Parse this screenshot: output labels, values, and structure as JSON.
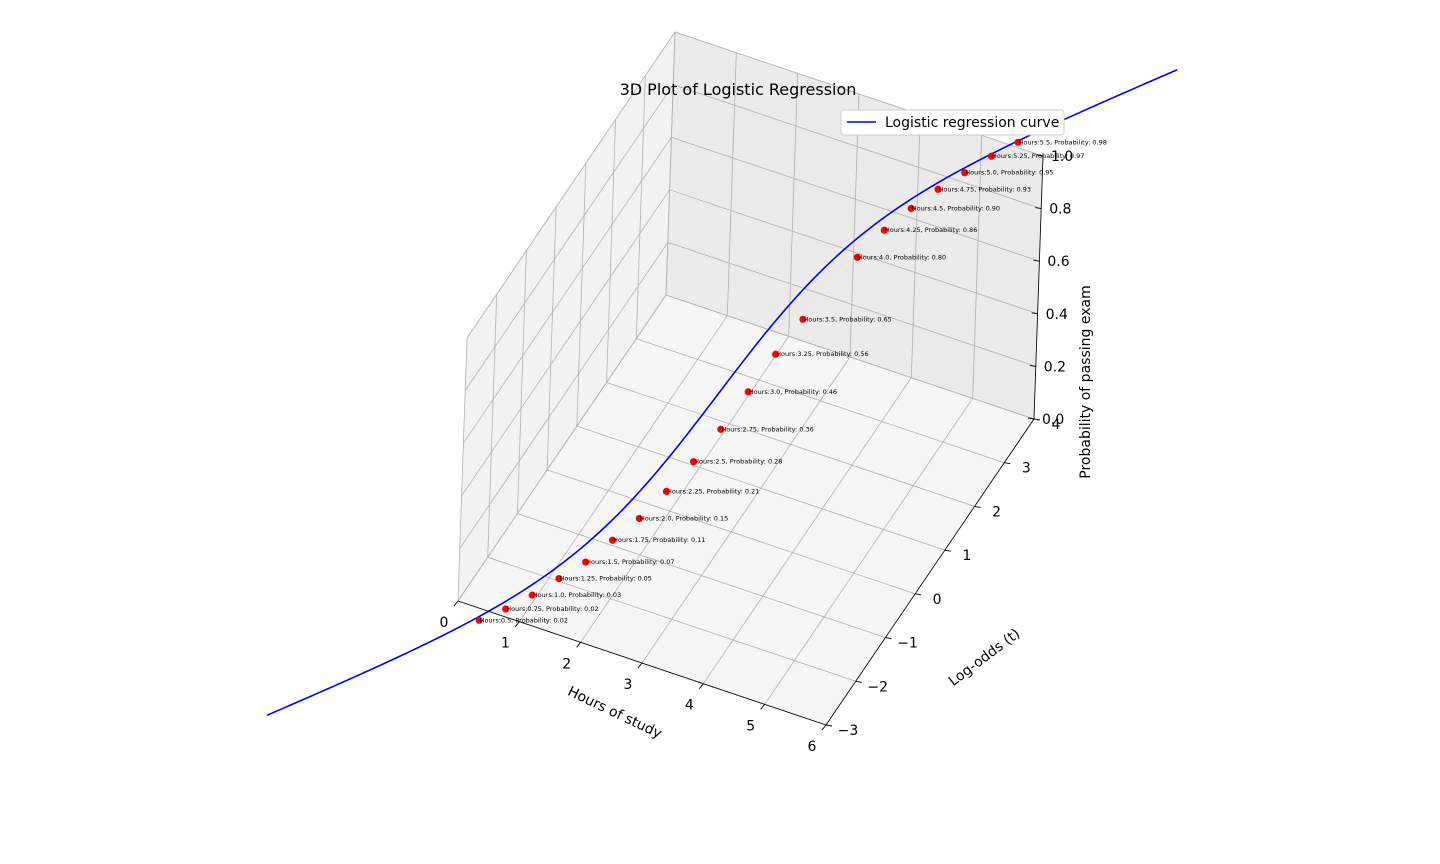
{
  "chart_data": {
    "type": "line",
    "title": "3D Plot of Logistic Regression",
    "xlabel": "Hours of study",
    "ylabel": "Log-odds (t)",
    "zlabel": "Probability of passing exam",
    "x_ticks": [
      "0",
      "1",
      "2",
      "3",
      "4",
      "5",
      "6"
    ],
    "y_ticks": [
      "−3",
      "−2",
      "−1",
      "0",
      "1",
      "2",
      "3",
      "4"
    ],
    "z_ticks": [
      "0.0",
      "0.2",
      "0.4",
      "0.6",
      "0.8",
      "1.0"
    ],
    "xlim": [
      0,
      6
    ],
    "ylim": [
      -3,
      4
    ],
    "zlim": [
      0,
      1
    ],
    "grid": true,
    "legend_position": "top-right",
    "series": [
      {
        "name": "Logistic regression curve",
        "color": "#0000ff",
        "type": "line"
      },
      {
        "color": "#ff0000",
        "type": "scatter"
      }
    ],
    "points": [
      {
        "hours": 0.5,
        "prob": 0.02,
        "label": "Hours:0.5, Probability: 0.02"
      },
      {
        "hours": 0.75,
        "prob": 0.02,
        "label": "Hours:0.75, Probability: 0.02"
      },
      {
        "hours": 1.0,
        "prob": 0.03,
        "label": "Hours:1.0, Probability: 0.03"
      },
      {
        "hours": 1.25,
        "prob": 0.05,
        "label": "Hours:1.25, Probability: 0.05"
      },
      {
        "hours": 1.5,
        "prob": 0.07,
        "label": "Hours:1.5, Probability: 0.07"
      },
      {
        "hours": 1.75,
        "prob": 0.11,
        "label": "Hours:1.75, Probability: 0.11"
      },
      {
        "hours": 2.0,
        "prob": 0.15,
        "label": "Hours:2.0, Probability: 0.15"
      },
      {
        "hours": 2.25,
        "prob": 0.21,
        "label": "Hours:2.25, Probability: 0.21"
      },
      {
        "hours": 2.5,
        "prob": 0.28,
        "label": "Hours:2.5, Probability: 0.28"
      },
      {
        "hours": 2.75,
        "prob": 0.36,
        "label": "Hours:2.75, Probability: 0.36"
      },
      {
        "hours": 3.0,
        "prob": 0.46,
        "label": "Hours:3.0, Probability: 0.46"
      },
      {
        "hours": 3.25,
        "prob": 0.56,
        "label": "Hours:3.25, Probability: 0.56"
      },
      {
        "hours": 3.5,
        "prob": 0.65,
        "label": "Hours:3.5, Probability: 0.65"
      },
      {
        "hours": 4.0,
        "prob": 0.8,
        "label": "Hours:4.0, Probability: 0.80"
      },
      {
        "hours": 4.25,
        "prob": 0.86,
        "label": "Hours:4.25, Probability: 0.86"
      },
      {
        "hours": 4.5,
        "prob": 0.9,
        "label": "Hours:4.5, Probability: 0.90"
      },
      {
        "hours": 4.75,
        "prob": 0.93,
        "label": "Hours:4.75, Probability: 0.93"
      },
      {
        "hours": 5.0,
        "prob": 0.95,
        "label": "Hours:5.0, Probability: 0.95"
      },
      {
        "hours": 5.25,
        "prob": 0.97,
        "label": "Hours:5.25, Probability: 0.97"
      },
      {
        "hours": 5.5,
        "prob": 0.98,
        "label": "Hours:5.5, Probability: 0.98"
      }
    ],
    "curve": {
      "x_range": [
        -1.5,
        7.0
      ],
      "intercept": -4.0777,
      "slope": 1.5046
    }
  }
}
